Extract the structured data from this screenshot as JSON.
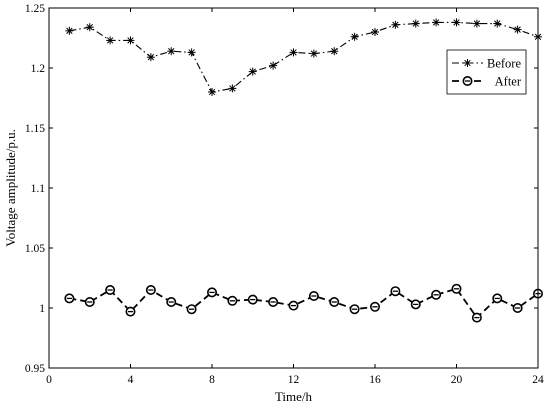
{
  "chart_data": {
    "type": "line",
    "xlabel": "Time/h",
    "ylabel": "Voltage amplitude/p.u.",
    "xlim": [
      0,
      24
    ],
    "ylim": [
      0.95,
      1.25
    ],
    "xticks": [
      0,
      4,
      8,
      12,
      16,
      20,
      24
    ],
    "xtick_labels": [
      "0",
      "4",
      "8",
      "12",
      "16",
      "20",
      "24"
    ],
    "yticks": [
      0.95,
      1,
      1.05,
      1.1,
      1.15,
      1.2,
      1.25
    ],
    "ytick_labels": [
      "0.95",
      "1",
      "1.05",
      "1.1",
      "1.15",
      "1.2",
      "1.25"
    ],
    "grid": false,
    "legend_position": "top-right",
    "x": [
      1,
      2,
      3,
      4,
      5,
      6,
      7,
      8,
      9,
      10,
      11,
      12,
      13,
      14,
      15,
      16,
      17,
      18,
      19,
      20,
      21,
      22,
      23,
      24
    ],
    "series": [
      {
        "name": "Before",
        "line_style": "dash-dot",
        "marker": "asterisk",
        "color": "#000000",
        "values": [
          1.231,
          1.234,
          1.223,
          1.223,
          1.209,
          1.214,
          1.213,
          1.18,
          1.183,
          1.197,
          1.202,
          1.213,
          1.212,
          1.214,
          1.226,
          1.23,
          1.236,
          1.237,
          1.238,
          1.238,
          1.237,
          1.237,
          1.232,
          1.226
        ]
      },
      {
        "name": "After",
        "line_style": "dashed",
        "marker": "circle",
        "color": "#000000",
        "values": [
          1.008,
          1.005,
          1.015,
          0.997,
          1.015,
          1.005,
          0.999,
          1.013,
          1.006,
          1.007,
          1.005,
          1.002,
          1.01,
          1.005,
          0.999,
          1.001,
          1.014,
          1.003,
          1.011,
          1.016,
          0.992,
          1.008,
          1.0,
          1.012
        ]
      }
    ]
  }
}
